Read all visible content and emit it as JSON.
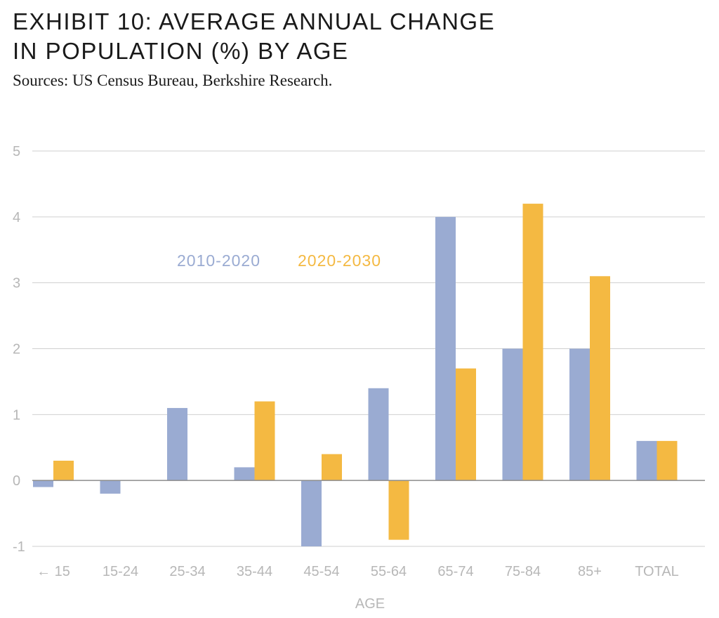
{
  "header": {
    "title_line1": "EXHIBIT 10: AVERAGE ANNUAL CHANGE",
    "title_line2": "IN POPULATION (%) BY AGE",
    "subtitle": "Sources: US Census Bureau, Berkshire Research."
  },
  "chart_data": {
    "type": "bar",
    "title": "EXHIBIT 10: AVERAGE ANNUAL CHANGE IN POPULATION (%) BY AGE",
    "subtitle": "Sources: US Census Bureau, Berkshire Research.",
    "xlabel": "AGE",
    "ylabel": "",
    "categories": [
      "← 15",
      "15-24",
      "25-34",
      "35-44",
      "45-54",
      "55-64",
      "65-74",
      "75-84",
      "85+",
      "TOTAL"
    ],
    "series": [
      {
        "name": "2010-2020",
        "color": "#9aabd2",
        "values": [
          -0.1,
          -0.2,
          1.1,
          0.2,
          -1.0,
          1.4,
          4.0,
          2.0,
          2.0,
          0.6
        ]
      },
      {
        "name": "2020-2030",
        "color": "#f4b942",
        "values": [
          0.3,
          0.0,
          0.0,
          1.2,
          0.4,
          -0.9,
          1.7,
          4.2,
          3.1,
          0.6
        ]
      }
    ],
    "yticks": [
      -1,
      0,
      1,
      2,
      3,
      4,
      5
    ],
    "ylim": [
      -1,
      5
    ],
    "grid": true,
    "legend_position": "top-left"
  }
}
